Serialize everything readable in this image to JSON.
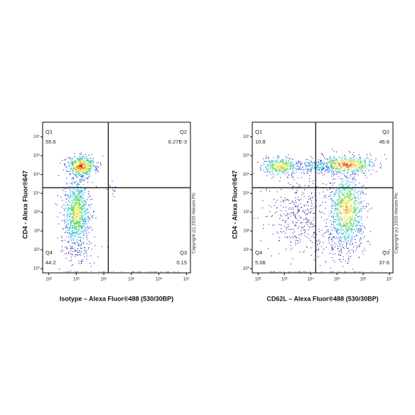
{
  "chart_data": [
    {
      "type": "scatter",
      "x_label": "Isotype – Alexa Fluor®488 (530/30BP)",
      "y_label": "CD4 - Alexa Fluor®647",
      "annotation": "Copyright (c) 2020 Abcam Plc",
      "log_x": true,
      "log_y": true,
      "xlim": [
        60,
        14000000
      ],
      "ylim": [
        0.6,
        60000000
      ],
      "xticks": [
        {
          "value": 100,
          "label": "10²"
        },
        {
          "value": 1000,
          "label": "10³"
        },
        {
          "value": 10000,
          "label": "10⁴"
        },
        {
          "value": 100000,
          "label": "10⁵"
        },
        {
          "value": 1000000,
          "label": "10⁶"
        },
        {
          "value": 10000000,
          "label": "10⁷"
        }
      ],
      "yticks": [
        {
          "value": 1,
          "label": "10⁰"
        },
        {
          "value": 10,
          "label": "10¹"
        },
        {
          "value": 100,
          "label": "10²"
        },
        {
          "value": 1000,
          "label": "10³"
        },
        {
          "value": 10000,
          "label": "10⁴"
        },
        {
          "value": 100000,
          "label": "10⁵"
        },
        {
          "value": 1000000,
          "label": "10⁶"
        },
        {
          "value": 10000000,
          "label": "10⁷"
        }
      ],
      "quadrant_gate": {
        "x": 14500,
        "y": 20000
      },
      "quadrants": {
        "names": [
          "Q1",
          "Q2",
          "Q3",
          "Q4"
        ],
        "values": [
          55.6,
          0.00627,
          0.15,
          44.2
        ],
        "value_labels": [
          "55.6",
          "6.27E-3",
          "0.15",
          "44.2"
        ]
      }
    },
    {
      "type": "scatter",
      "x_label": "CD62L – Alexa Fluor®488 (530/30BP)",
      "y_label": "CD4 - Alexa Fluor®647",
      "annotation": "Copyright (c) 2020 Abcam Plc",
      "log_x": true,
      "log_y": true,
      "xlim": [
        60,
        13500000
      ],
      "ylim": [
        0.6,
        60000000
      ],
      "xticks": [
        {
          "value": 100,
          "label": "10²"
        },
        {
          "value": 1000,
          "label": "10³"
        },
        {
          "value": 10000,
          "label": "10⁴"
        },
        {
          "value": 100000,
          "label": "10⁵"
        },
        {
          "value": 1000000,
          "label": "10⁶"
        },
        {
          "value": 10000000,
          "label": "10⁷"
        }
      ],
      "yticks": [
        {
          "value": 1,
          "label": "10⁰"
        },
        {
          "value": 10,
          "label": "10¹"
        },
        {
          "value": 100,
          "label": "10²"
        },
        {
          "value": 1000,
          "label": "10³"
        },
        {
          "value": 10000,
          "label": "10⁴"
        },
        {
          "value": 100000,
          "label": "10⁵"
        },
        {
          "value": 1000000,
          "label": "10⁶"
        },
        {
          "value": 10000000,
          "label": "10⁷"
        }
      ],
      "quadrant_gate": {
        "x": 15500,
        "y": 20000
      },
      "quadrants": {
        "names": [
          "Q1",
          "Q2",
          "Q3",
          "Q4"
        ],
        "values": [
          10.8,
          46.6,
          37.6,
          5.08
        ],
        "value_labels": [
          "10.8",
          "46.6",
          "37.6",
          "5.08"
        ]
      }
    }
  ]
}
